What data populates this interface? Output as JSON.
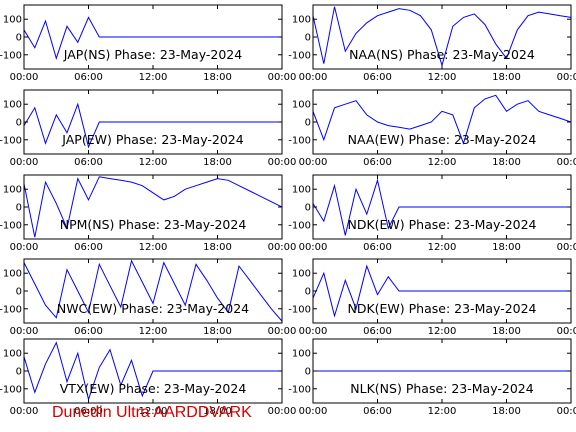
{
  "figure": {
    "footer_label": "Dunedin Ultra AARDDVARK",
    "footer_color": "#d40000",
    "trace_color": "#0000ff"
  },
  "chart_data": [
    {
      "type": "line",
      "title": "JAP(NS) Phase: 23-May-2024",
      "xlim": [
        0,
        24
      ],
      "ylim": [
        -180,
        180
      ],
      "xticks": [
        "00:00",
        "06:00",
        "12:00",
        "18:00",
        "00:00"
      ],
      "yticks": [
        "100",
        "0",
        "-100"
      ],
      "x": [
        0,
        1,
        2,
        3,
        4,
        5,
        6,
        7,
        8,
        9,
        10,
        11,
        12,
        13,
        14,
        15,
        16,
        17,
        18,
        19,
        20,
        21,
        22,
        23,
        24
      ],
      "series": [
        {
          "values": [
            40,
            -60,
            90,
            -120,
            60,
            -30,
            110,
            0,
            0,
            0,
            0,
            0,
            0,
            0,
            0,
            0,
            0,
            0,
            0,
            0,
            0,
            0,
            0,
            0,
            0
          ]
        }
      ]
    },
    {
      "type": "line",
      "title": "NAA(NS) Phase: 23-May-2024",
      "xlim": [
        0,
        24
      ],
      "ylim": [
        -180,
        180
      ],
      "xticks": [
        "00:00",
        "06:00",
        "12:00",
        "18:00",
        "00:00"
      ],
      "yticks": [
        "100",
        "0",
        "-100"
      ],
      "x": [
        0,
        1,
        2,
        3,
        4,
        5,
        6,
        7,
        8,
        9,
        10,
        11,
        12,
        13,
        14,
        15,
        16,
        17,
        18,
        19,
        20,
        21,
        22,
        23,
        24
      ],
      "series": [
        {
          "values": [
            120,
            -150,
            170,
            -80,
            20,
            80,
            120,
            140,
            160,
            150,
            120,
            40,
            -160,
            60,
            110,
            130,
            70,
            -40,
            -120,
            40,
            120,
            140,
            130,
            120,
            110
          ]
        }
      ]
    },
    {
      "type": "line",
      "title": "JAP(EW) Phase: 23-May-2024",
      "xlim": [
        0,
        24
      ],
      "ylim": [
        -180,
        180
      ],
      "xticks": [
        "00:00",
        "06:00",
        "12:00",
        "18:00",
        "00:00"
      ],
      "yticks": [
        "100",
        "0",
        "-100"
      ],
      "x": [
        0,
        1,
        2,
        3,
        4,
        5,
        6,
        7,
        8,
        9,
        10,
        11,
        12,
        13,
        14,
        15,
        16,
        17,
        18,
        19,
        20,
        21,
        22,
        23,
        24
      ],
      "series": [
        {
          "values": [
            -20,
            80,
            -120,
            40,
            -60,
            100,
            -140,
            0,
            0,
            0,
            0,
            0,
            0,
            0,
            0,
            0,
            0,
            0,
            0,
            0,
            0,
            0,
            0,
            0,
            0
          ]
        }
      ]
    },
    {
      "type": "line",
      "title": "NAA(EW) Phase: 23-May-2024",
      "xlim": [
        0,
        24
      ],
      "ylim": [
        -180,
        180
      ],
      "xticks": [
        "00:00",
        "06:00",
        "12:00",
        "18:00",
        "00:00"
      ],
      "yticks": [
        "100",
        "0",
        "-100"
      ],
      "x": [
        0,
        1,
        2,
        3,
        4,
        5,
        6,
        7,
        8,
        9,
        10,
        11,
        12,
        13,
        14,
        15,
        16,
        17,
        18,
        19,
        20,
        21,
        22,
        23,
        24
      ],
      "series": [
        {
          "values": [
            60,
            -100,
            80,
            100,
            120,
            40,
            0,
            -20,
            -30,
            -40,
            -20,
            0,
            60,
            40,
            -120,
            80,
            130,
            150,
            60,
            100,
            120,
            60,
            40,
            20,
            0
          ]
        }
      ]
    },
    {
      "type": "line",
      "title": "NPM(NS) Phase: 23-May-2024",
      "xlim": [
        0,
        24
      ],
      "ylim": [
        -180,
        180
      ],
      "xticks": [
        "00:00",
        "06:00",
        "12:00",
        "18:00",
        "00:00"
      ],
      "yticks": [
        "100",
        "0",
        "-100"
      ],
      "x": [
        0,
        1,
        2,
        3,
        4,
        5,
        6,
        7,
        8,
        9,
        10,
        11,
        12,
        13,
        14,
        15,
        16,
        17,
        18,
        19,
        20,
        21,
        22,
        23,
        24
      ],
      "series": [
        {
          "values": [
            130,
            -170,
            140,
            20,
            -120,
            160,
            40,
            170,
            160,
            150,
            140,
            120,
            80,
            40,
            60,
            100,
            120,
            140,
            160,
            150,
            120,
            90,
            60,
            30,
            0
          ]
        }
      ]
    },
    {
      "type": "line",
      "title": "NDK(EW) Phase: 23-May-2024",
      "xlim": [
        0,
        24
      ],
      "ylim": [
        -180,
        180
      ],
      "xticks": [
        "00:00",
        "06:00",
        "12:00",
        "18:00",
        "00:00"
      ],
      "yticks": [
        "100",
        "0",
        "-100"
      ],
      "x": [
        0,
        1,
        2,
        3,
        4,
        5,
        6,
        7,
        8,
        9,
        10,
        11,
        12,
        13,
        14,
        15,
        16,
        17,
        18,
        19,
        20,
        21,
        22,
        23,
        24
      ],
      "series": [
        {
          "values": [
            20,
            -80,
            120,
            -160,
            100,
            -40,
            150,
            -120,
            0,
            0,
            0,
            0,
            0,
            0,
            0,
            0,
            0,
            0,
            0,
            0,
            0,
            0,
            0,
            0,
            0
          ]
        }
      ]
    },
    {
      "type": "line",
      "title": "NWC(EW) Phase: 23-May-2024",
      "xlim": [
        0,
        24
      ],
      "ylim": [
        -180,
        180
      ],
      "xticks": [
        "00:00",
        "06:00",
        "12:00",
        "18:00",
        "00:00"
      ],
      "yticks": [
        "100",
        "0",
        "-100"
      ],
      "x": [
        0,
        1,
        2,
        3,
        4,
        5,
        6,
        7,
        8,
        9,
        10,
        11,
        12,
        13,
        14,
        15,
        16,
        17,
        18,
        19,
        20,
        21,
        22,
        23,
        24
      ],
      "series": [
        {
          "values": [
            160,
            40,
            -80,
            -150,
            120,
            0,
            -120,
            150,
            30,
            -90,
            170,
            50,
            -70,
            160,
            40,
            -80,
            150,
            60,
            -40,
            -120,
            140,
            60,
            -20,
            -100,
            -170
          ]
        }
      ]
    },
    {
      "type": "line",
      "title": "NDK(EW) Phase: 23-May-2024",
      "xlim": [
        0,
        24
      ],
      "ylim": [
        -180,
        180
      ],
      "xticks": [
        "00:00",
        "06:00",
        "12:00",
        "18:00",
        "00:00"
      ],
      "yticks": [
        "100",
        "0",
        "-100"
      ],
      "x": [
        0,
        1,
        2,
        3,
        4,
        5,
        6,
        7,
        8,
        9,
        10,
        11,
        12,
        13,
        14,
        15,
        16,
        17,
        18,
        19,
        20,
        21,
        22,
        23,
        24
      ],
      "series": [
        {
          "values": [
            -40,
            100,
            -140,
            60,
            -100,
            140,
            -20,
            80,
            0,
            0,
            0,
            0,
            0,
            0,
            0,
            0,
            0,
            0,
            0,
            0,
            0,
            0,
            0,
            0,
            0
          ]
        }
      ]
    },
    {
      "type": "line",
      "title": "VTX(EW) Phase: 23-May-2024",
      "xlim": [
        0,
        24
      ],
      "ylim": [
        -180,
        180
      ],
      "xticks": [
        "00:00",
        "06:00",
        "12:00",
        "18:00",
        "00:00"
      ],
      "yticks": [
        "100",
        "0",
        "-100"
      ],
      "x": [
        0,
        1,
        2,
        3,
        4,
        5,
        6,
        7,
        8,
        9,
        10,
        11,
        12,
        13,
        14,
        15,
        16,
        17,
        18,
        19,
        20,
        21,
        22,
        23,
        24
      ],
      "series": [
        {
          "values": [
            80,
            -120,
            40,
            160,
            -60,
            100,
            -160,
            20,
            120,
            -80,
            60,
            -140,
            0,
            0,
            0,
            0,
            0,
            0,
            0,
            0,
            0,
            0,
            0,
            0,
            0
          ]
        }
      ]
    },
    {
      "type": "line",
      "title": "NLK(NS) Phase: 23-May-2024",
      "xlim": [
        0,
        24
      ],
      "ylim": [
        -180,
        180
      ],
      "xticks": [
        "00:00",
        "06:00",
        "12:00",
        "18:00",
        "00:00"
      ],
      "yticks": [
        "100",
        "0",
        "-100"
      ],
      "x": [
        0,
        1,
        2,
        3,
        4,
        5,
        6,
        7,
        8,
        9,
        10,
        11,
        12,
        13,
        14,
        15,
        16,
        17,
        18,
        19,
        20,
        21,
        22,
        23,
        24
      ],
      "series": [
        {
          "values": [
            0,
            0,
            0,
            0,
            0,
            0,
            0,
            0,
            0,
            0,
            0,
            0,
            0,
            0,
            0,
            0,
            0,
            0,
            0,
            0,
            0,
            0,
            0,
            0,
            0
          ]
        }
      ]
    }
  ]
}
